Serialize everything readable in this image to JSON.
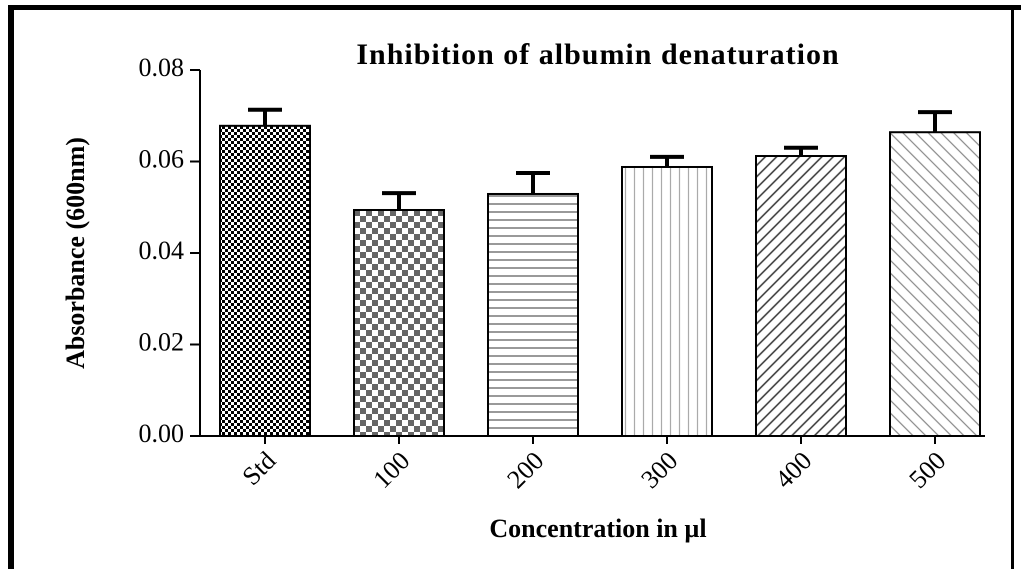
{
  "chart_data": {
    "type": "bar",
    "title": "Inhibition of albumin denaturation",
    "x_label": "Concentration in µl",
    "y_label": "Absorbance (600nm)",
    "categories": [
      "Std",
      "100",
      "200",
      "300",
      "400",
      "500"
    ],
    "values": [
      0.0678,
      0.0494,
      0.0529,
      0.0588,
      0.0612,
      0.0664
    ],
    "errors": [
      0.0035,
      0.0037,
      0.0046,
      0.0022,
      0.0018,
      0.0044
    ],
    "ylim": [
      0,
      0.08
    ],
    "yticks": [
      {
        "value": 0,
        "label": "0.00"
      },
      0.02,
      0.04,
      0.06,
      0.08
    ],
    "color": "#000000",
    "grid": false
  }
}
